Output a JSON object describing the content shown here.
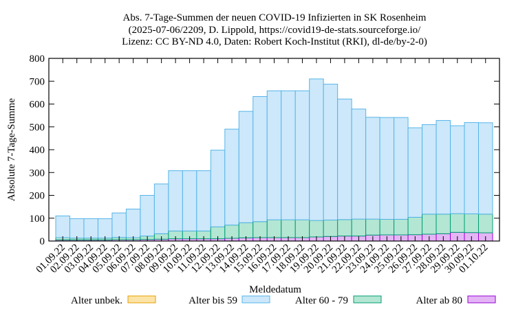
{
  "chart_data": {
    "type": "bar",
    "stacked": true,
    "title": [
      "Abs. 7-Tage-Summen der neuen COVID-19 Infizierten in SK Rosenheim",
      "(2025-07-06/2209, D. Lippold, https://covid19-de-stats.sourceforge.io/",
      "Lizenz: CC BY-ND 4.0, Daten: Robert Koch-Institut (RKI), dl-de/by-2-0)"
    ],
    "xlabel": "Meldedatum",
    "ylabel": "Absolute 7-Tage-Summe",
    "ylim": [
      0,
      800
    ],
    "yticks": [
      0,
      100,
      200,
      300,
      400,
      500,
      600,
      700,
      800
    ],
    "grid": false,
    "legend_position": "bottom",
    "categories": [
      "01.09.22",
      "02.09.22",
      "03.09.22",
      "04.09.22",
      "05.09.22",
      "06.09.22",
      "07.09.22",
      "08.09.22",
      "09.09.22",
      "10.09.22",
      "11.09.22",
      "12.09.22",
      "13.09.22",
      "14.09.22",
      "15.09.22",
      "16.09.22",
      "17.09.22",
      "18.09.22",
      "19.09.22",
      "20.09.22",
      "21.09.22",
      "22.09.22",
      "23.09.22",
      "24.09.22",
      "25.09.22",
      "26.09.22",
      "27.09.22",
      "28.09.22",
      "29.09.22",
      "30.09.22",
      "01.10.22"
    ],
    "series": [
      {
        "name": "Alter unbek.",
        "fill": "#fce4a8",
        "stroke": "#e69f00",
        "values": [
          0,
          0,
          0,
          0,
          0,
          0,
          0,
          0,
          0,
          0,
          0,
          0,
          0,
          0,
          0,
          0,
          0,
          0,
          0,
          0,
          0,
          0,
          0,
          0,
          0,
          0,
          0,
          0,
          0,
          0,
          0
        ]
      },
      {
        "name": "Alter ab 80",
        "fill": "#e4b5f5",
        "stroke": "#9400d3",
        "values": [
          5,
          5,
          5,
          5,
          6,
          6,
          7,
          8,
          10,
          10,
          10,
          10,
          12,
          14,
          15,
          15,
          15,
          15,
          18,
          20,
          22,
          22,
          26,
          27,
          27,
          28,
          30,
          32,
          38,
          37,
          36
        ]
      },
      {
        "name": "Alter 60 - 79",
        "fill": "#b3e6d3",
        "stroke": "#009e73",
        "values": [
          10,
          8,
          8,
          8,
          10,
          9,
          15,
          24,
          34,
          34,
          34,
          52,
          58,
          66,
          70,
          78,
          78,
          78,
          72,
          72,
          72,
          74,
          70,
          68,
          68,
          76,
          88,
          86,
          82,
          82,
          82
        ]
      },
      {
        "name": "Alter bis 59",
        "fill": "#cce8fa",
        "stroke": "#56b4e9",
        "values": [
          95,
          85,
          85,
          85,
          107,
          125,
          178,
          218,
          264,
          264,
          264,
          336,
          420,
          488,
          548,
          565,
          565,
          565,
          620,
          595,
          528,
          482,
          446,
          446,
          446,
          392,
          392,
          410,
          385,
          400,
          400
        ]
      }
    ],
    "legend_order": [
      "Alter unbek.",
      "Alter bis 59",
      "Alter 60 - 79",
      "Alter ab 80"
    ]
  }
}
